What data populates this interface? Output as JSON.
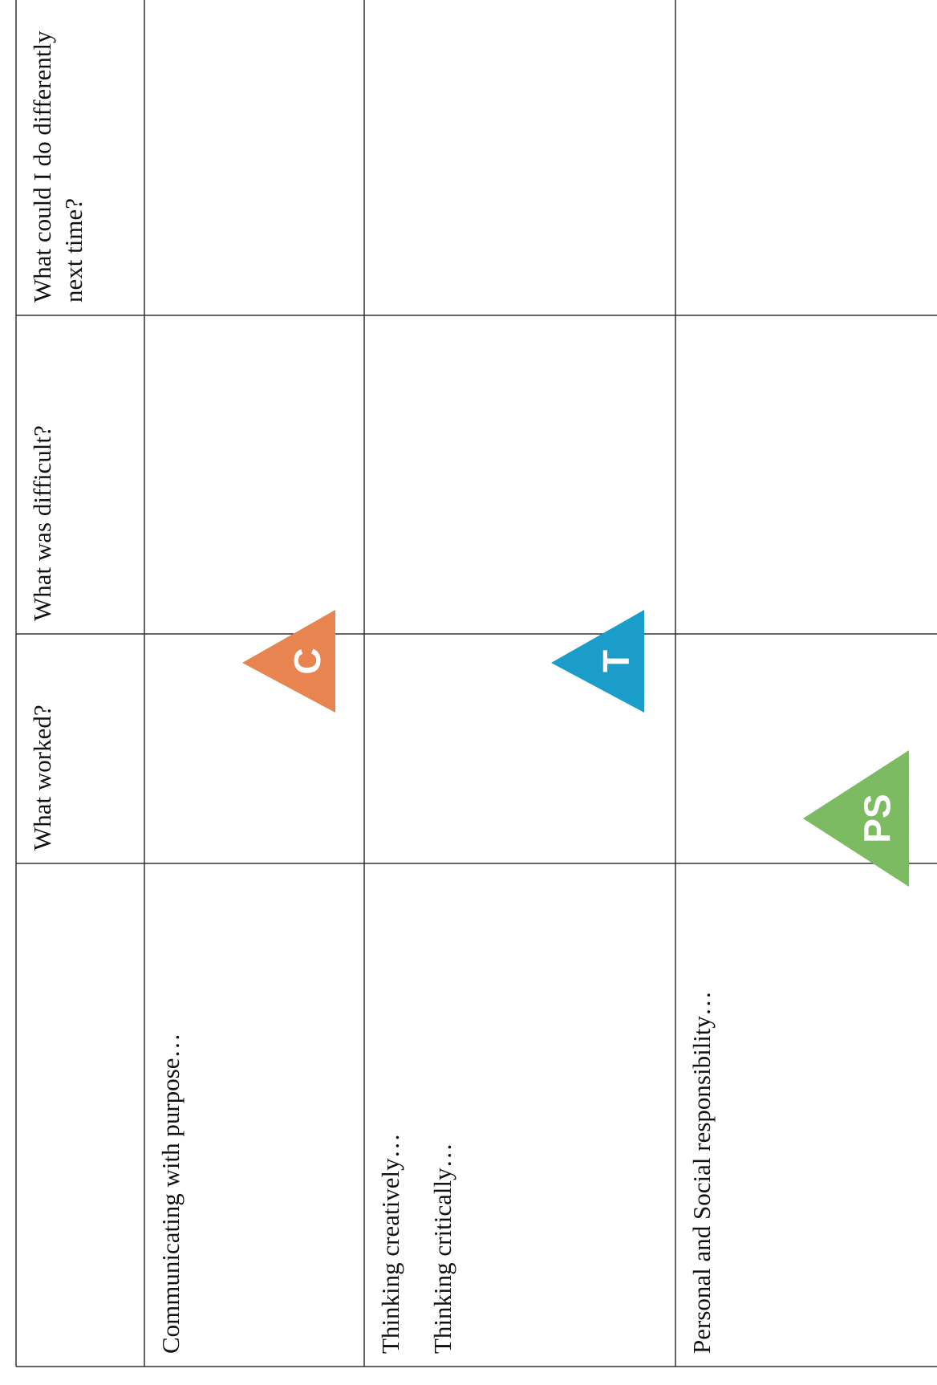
{
  "table": {
    "header": [
      "What worked?",
      "What was difficult?",
      "What could I do differently next time?"
    ],
    "rows": [
      {
        "label": [
          "Communicating with purpose…"
        ],
        "badge": "C"
      },
      {
        "label": [
          "Thinking creatively…",
          "Thinking critically…"
        ],
        "badge": "T"
      },
      {
        "label": [
          "Personal and Social responsibility…"
        ],
        "badge": "PS"
      }
    ]
  }
}
